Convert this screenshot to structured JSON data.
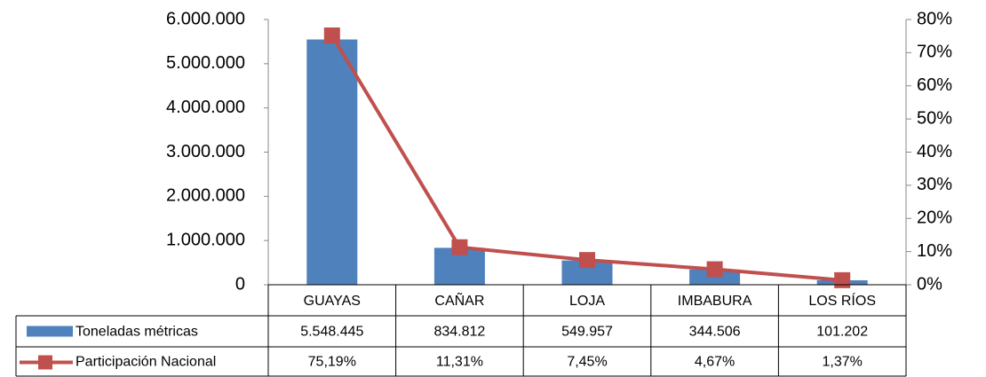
{
  "chart_data": {
    "type": "bar_line",
    "categories": [
      "GUAYAS",
      "CAÑAR",
      "LOJA",
      "IMBABURA",
      "LOS RÍOS"
    ],
    "series": [
      {
        "name": "Toneladas métricas",
        "color": "#4f81bd",
        "type": "bar",
        "values": [
          5548445,
          834812,
          549957,
          344506,
          101202
        ],
        "value_labels": [
          "5.548.445",
          "834.812",
          "549.957",
          "344.506",
          "101.202"
        ]
      },
      {
        "name": "Participación Nacional",
        "color": "#c0504d",
        "type": "line",
        "axis": "y2",
        "values": [
          75.19,
          11.31,
          7.45,
          4.67,
          1.37
        ],
        "value_labels": [
          "75,19%",
          "11,31%",
          "7,45%",
          "4,67%",
          "1,37%"
        ]
      }
    ],
    "ylim": [
      0,
      6000000
    ],
    "yticks": [
      0,
      {
        "value": 1000000,
        "label": "1.000.000"
      },
      {
        "value": 2000000,
        "label": "2.000.000"
      },
      {
        "value": 3000000,
        "label": "3.000.000"
      },
      {
        "value": 4000000,
        "label": "4.000.000"
      },
      {
        "value": 5000000,
        "label": "5.000.000"
      },
      {
        "value": 6000000,
        "label": "6.000.000"
      }
    ],
    "y2lim": [
      0,
      80
    ],
    "y2ticks": [
      {
        "value": 0,
        "label": "0%"
      },
      {
        "value": 10,
        "label": "10%"
      },
      {
        "value": 20,
        "label": "20%"
      },
      {
        "value": 30,
        "label": "30%"
      },
      {
        "value": 40,
        "label": "40%"
      },
      {
        "value": 50,
        "label": "50%"
      },
      {
        "value": 60,
        "label": "60%"
      },
      {
        "value": 70,
        "label": "70%"
      },
      {
        "value": 80,
        "label": "80%"
      }
    ],
    "data_table": true
  }
}
